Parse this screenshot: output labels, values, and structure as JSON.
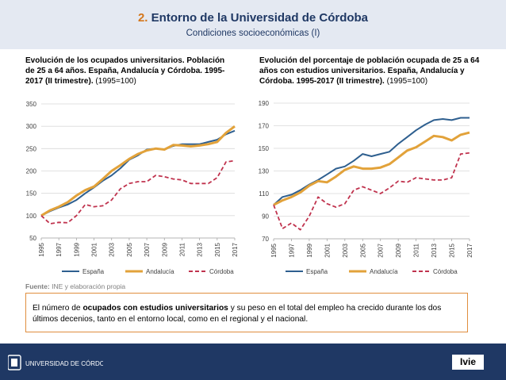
{
  "header": {
    "number": "2.",
    "title": "Entorno de la Universidad de Córdoba",
    "subtitle": "Condiciones socioeconómicas (I)"
  },
  "colors": {
    "espana": "#2e5f8f",
    "andalucia": "#e2a23a",
    "cordoba": "#c0334e",
    "header_band": "#e4e9f2",
    "footer_band": "#1f3864",
    "box_border": "#e08e3e"
  },
  "charts": [
    {
      "title_bold": "Evolución de los ocupados universitarios. Población de 25 a 64 años. España, Andalucía y Córdoba. 1995-2017 (II trimestre).",
      "title_paren": "(1995=100)"
    },
    {
      "title_bold": "Evolución del porcentaje de población ocupada de 25 a 64 años con estudios universitarios. España, Andalucía y Córdoba. 1995-2017 (II trimestre).",
      "title_paren": "(1995=100)"
    }
  ],
  "chart_data": [
    {
      "type": "line",
      "x": [
        1995,
        1996,
        1997,
        1998,
        1999,
        2000,
        2001,
        2002,
        2003,
        2004,
        2005,
        2006,
        2007,
        2008,
        2009,
        2010,
        2011,
        2012,
        2013,
        2014,
        2015,
        2016,
        2017
      ],
      "xticks": [
        "1995",
        "1997",
        "1999",
        "2001",
        "2003",
        "2005",
        "2007",
        "2009",
        "2011",
        "2013",
        "2015",
        "2017"
      ],
      "ylim": [
        50,
        350
      ],
      "yticks": [
        50,
        100,
        150,
        200,
        250,
        300,
        350
      ],
      "grid": true,
      "legend": "bottom",
      "series": [
        {
          "name": "España",
          "style": "solid",
          "values": [
            100,
            110,
            118,
            125,
            135,
            150,
            163,
            178,
            190,
            206,
            225,
            235,
            248,
            250,
            248,
            256,
            260,
            260,
            260,
            265,
            270,
            282,
            290
          ]
        },
        {
          "name": "Andalucía",
          "style": "solid",
          "values": [
            100,
            112,
            120,
            130,
            145,
            157,
            165,
            182,
            200,
            213,
            227,
            238,
            246,
            250,
            248,
            258,
            257,
            255,
            257,
            260,
            265,
            285,
            300
          ]
        },
        {
          "name": "Córdoba",
          "style": "dashed",
          "values": [
            100,
            82,
            85,
            84,
            100,
            125,
            120,
            122,
            135,
            160,
            172,
            176,
            176,
            190,
            187,
            182,
            180,
            172,
            172,
            172,
            185,
            220,
            223
          ]
        }
      ]
    },
    {
      "type": "line",
      "x": [
        1995,
        1996,
        1997,
        1998,
        1999,
        2000,
        2001,
        2002,
        2003,
        2004,
        2005,
        2006,
        2007,
        2008,
        2009,
        2010,
        2011,
        2012,
        2013,
        2014,
        2015,
        2016,
        2017
      ],
      "xticks": [
        "1995",
        "1997",
        "1999",
        "2001",
        "2003",
        "2005",
        "2007",
        "2009",
        "2011",
        "2013",
        "2015",
        "2017"
      ],
      "ylim": [
        70,
        190
      ],
      "yticks": [
        70,
        90,
        110,
        130,
        150,
        170,
        190
      ],
      "grid": true,
      "legend": "bottom",
      "series": [
        {
          "name": "España",
          "style": "solid",
          "values": [
            100,
            107,
            109,
            113,
            118,
            122,
            127,
            132,
            134,
            139,
            145,
            143,
            145,
            147,
            154,
            160,
            166,
            171,
            175,
            176,
            175,
            177,
            177
          ]
        },
        {
          "name": "Andalucía",
          "style": "solid",
          "values": [
            100,
            104,
            107,
            111,
            117,
            121,
            120,
            125,
            131,
            134,
            132,
            132,
            133,
            136,
            142,
            148,
            151,
            156,
            161,
            160,
            157,
            162,
            164
          ]
        },
        {
          "name": "Córdoba",
          "style": "dashed",
          "values": [
            100,
            79,
            84,
            78,
            90,
            107,
            101,
            98,
            101,
            113,
            116,
            113,
            110,
            115,
            121,
            120,
            124,
            123,
            122,
            122,
            124,
            145,
            146
          ]
        }
      ]
    }
  ],
  "source": {
    "label": "Fuente:",
    "text": "INE y elaboración propia"
  },
  "info": {
    "t1": "El número de ",
    "b1": "ocupados con estudios universitarios",
    "t2": " y su peso en el total del empleo ha crecido durante los dos últimos decenios, tanto en el entorno local, como en el regional y el nacional."
  },
  "footer": {
    "uco_logo": "UNIVERSIDAD DE CÓRDOBA",
    "ivie_logo": "Ivie"
  }
}
